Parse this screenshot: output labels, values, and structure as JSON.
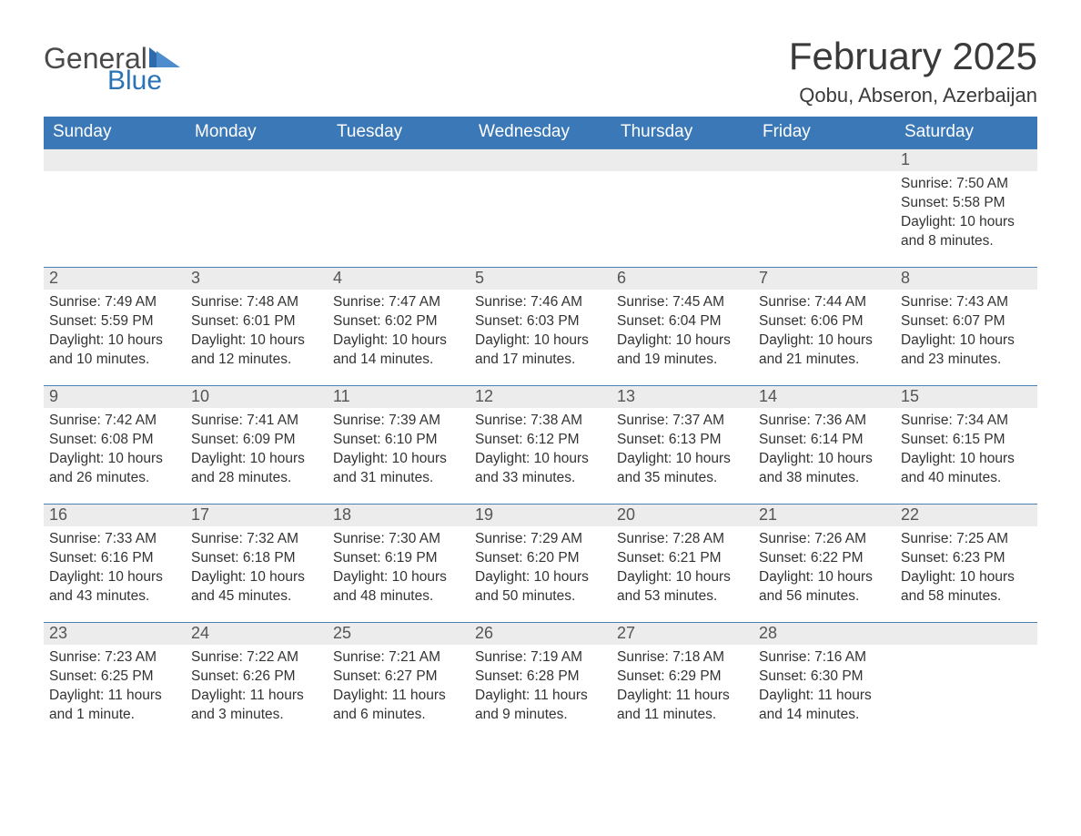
{
  "logo": {
    "general": "General",
    "blue": "Blue"
  },
  "title": "February 2025",
  "location": "Qobu, Abseron, Azerbaijan",
  "weekdays": [
    "Sunday",
    "Monday",
    "Tuesday",
    "Wednesday",
    "Thursday",
    "Friday",
    "Saturday"
  ],
  "colors": {
    "header_bg": "#3b78b8",
    "accent": "#2f6aac",
    "row_gray": "#ececec",
    "border_blue": "#4a7fb8",
    "text": "#333333",
    "background": "#ffffff"
  },
  "typography": {
    "title_fontsize": 42,
    "location_fontsize": 22,
    "header_fontsize": 19,
    "daynum_fontsize": 18,
    "detail_fontsize": 15.5,
    "font_family": "Arial"
  },
  "weeks": [
    [
      null,
      null,
      null,
      null,
      null,
      null,
      {
        "n": "1",
        "sr": "Sunrise: 7:50 AM",
        "ss": "Sunset: 5:58 PM",
        "dl": "Daylight: 10 hours and 8 minutes."
      }
    ],
    [
      {
        "n": "2",
        "sr": "Sunrise: 7:49 AM",
        "ss": "Sunset: 5:59 PM",
        "dl": "Daylight: 10 hours and 10 minutes."
      },
      {
        "n": "3",
        "sr": "Sunrise: 7:48 AM",
        "ss": "Sunset: 6:01 PM",
        "dl": "Daylight: 10 hours and 12 minutes."
      },
      {
        "n": "4",
        "sr": "Sunrise: 7:47 AM",
        "ss": "Sunset: 6:02 PM",
        "dl": "Daylight: 10 hours and 14 minutes."
      },
      {
        "n": "5",
        "sr": "Sunrise: 7:46 AM",
        "ss": "Sunset: 6:03 PM",
        "dl": "Daylight: 10 hours and 17 minutes."
      },
      {
        "n": "6",
        "sr": "Sunrise: 7:45 AM",
        "ss": "Sunset: 6:04 PM",
        "dl": "Daylight: 10 hours and 19 minutes."
      },
      {
        "n": "7",
        "sr": "Sunrise: 7:44 AM",
        "ss": "Sunset: 6:06 PM",
        "dl": "Daylight: 10 hours and 21 minutes."
      },
      {
        "n": "8",
        "sr": "Sunrise: 7:43 AM",
        "ss": "Sunset: 6:07 PM",
        "dl": "Daylight: 10 hours and 23 minutes."
      }
    ],
    [
      {
        "n": "9",
        "sr": "Sunrise: 7:42 AM",
        "ss": "Sunset: 6:08 PM",
        "dl": "Daylight: 10 hours and 26 minutes."
      },
      {
        "n": "10",
        "sr": "Sunrise: 7:41 AM",
        "ss": "Sunset: 6:09 PM",
        "dl": "Daylight: 10 hours and 28 minutes."
      },
      {
        "n": "11",
        "sr": "Sunrise: 7:39 AM",
        "ss": "Sunset: 6:10 PM",
        "dl": "Daylight: 10 hours and 31 minutes."
      },
      {
        "n": "12",
        "sr": "Sunrise: 7:38 AM",
        "ss": "Sunset: 6:12 PM",
        "dl": "Daylight: 10 hours and 33 minutes."
      },
      {
        "n": "13",
        "sr": "Sunrise: 7:37 AM",
        "ss": "Sunset: 6:13 PM",
        "dl": "Daylight: 10 hours and 35 minutes."
      },
      {
        "n": "14",
        "sr": "Sunrise: 7:36 AM",
        "ss": "Sunset: 6:14 PM",
        "dl": "Daylight: 10 hours and 38 minutes."
      },
      {
        "n": "15",
        "sr": "Sunrise: 7:34 AM",
        "ss": "Sunset: 6:15 PM",
        "dl": "Daylight: 10 hours and 40 minutes."
      }
    ],
    [
      {
        "n": "16",
        "sr": "Sunrise: 7:33 AM",
        "ss": "Sunset: 6:16 PM",
        "dl": "Daylight: 10 hours and 43 minutes."
      },
      {
        "n": "17",
        "sr": "Sunrise: 7:32 AM",
        "ss": "Sunset: 6:18 PM",
        "dl": "Daylight: 10 hours and 45 minutes."
      },
      {
        "n": "18",
        "sr": "Sunrise: 7:30 AM",
        "ss": "Sunset: 6:19 PM",
        "dl": "Daylight: 10 hours and 48 minutes."
      },
      {
        "n": "19",
        "sr": "Sunrise: 7:29 AM",
        "ss": "Sunset: 6:20 PM",
        "dl": "Daylight: 10 hours and 50 minutes."
      },
      {
        "n": "20",
        "sr": "Sunrise: 7:28 AM",
        "ss": "Sunset: 6:21 PM",
        "dl": "Daylight: 10 hours and 53 minutes."
      },
      {
        "n": "21",
        "sr": "Sunrise: 7:26 AM",
        "ss": "Sunset: 6:22 PM",
        "dl": "Daylight: 10 hours and 56 minutes."
      },
      {
        "n": "22",
        "sr": "Sunrise: 7:25 AM",
        "ss": "Sunset: 6:23 PM",
        "dl": "Daylight: 10 hours and 58 minutes."
      }
    ],
    [
      {
        "n": "23",
        "sr": "Sunrise: 7:23 AM",
        "ss": "Sunset: 6:25 PM",
        "dl": "Daylight: 11 hours and 1 minute."
      },
      {
        "n": "24",
        "sr": "Sunrise: 7:22 AM",
        "ss": "Sunset: 6:26 PM",
        "dl": "Daylight: 11 hours and 3 minutes."
      },
      {
        "n": "25",
        "sr": "Sunrise: 7:21 AM",
        "ss": "Sunset: 6:27 PM",
        "dl": "Daylight: 11 hours and 6 minutes."
      },
      {
        "n": "26",
        "sr": "Sunrise: 7:19 AM",
        "ss": "Sunset: 6:28 PM",
        "dl": "Daylight: 11 hours and 9 minutes."
      },
      {
        "n": "27",
        "sr": "Sunrise: 7:18 AM",
        "ss": "Sunset: 6:29 PM",
        "dl": "Daylight: 11 hours and 11 minutes."
      },
      {
        "n": "28",
        "sr": "Sunrise: 7:16 AM",
        "ss": "Sunset: 6:30 PM",
        "dl": "Daylight: 11 hours and 14 minutes."
      },
      null
    ]
  ]
}
